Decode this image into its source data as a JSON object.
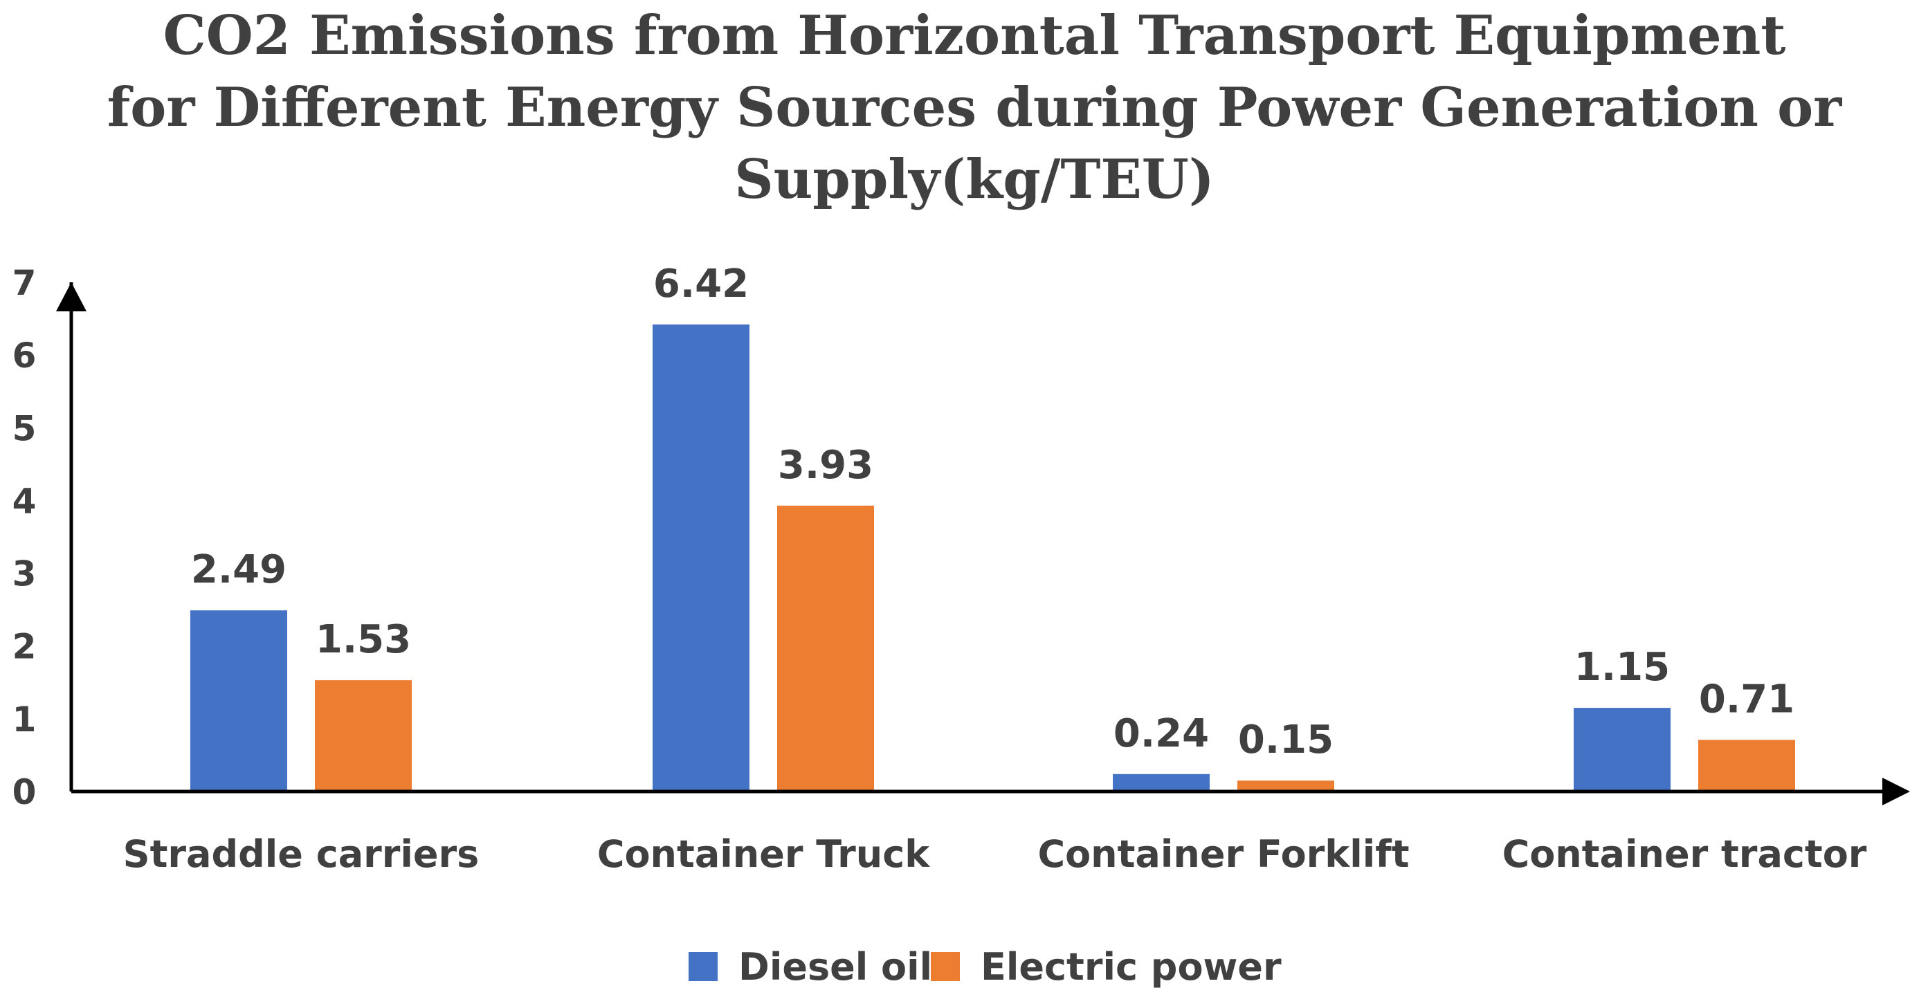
{
  "chart_data": {
    "type": "bar",
    "title": "CO2 Emissions from Horizontal Transport Equipment for Different Energy Sources during Power Generation or Supply(kg/TEU)",
    "title_lines": [
      "CO2 Emissions from Horizontal Transport Equipment",
      "for Different Energy Sources during Power Generation or",
      "Supply(kg/TEU)"
    ],
    "categories": [
      "Straddle carriers",
      "Container Truck",
      "Container Forklift",
      "Container tractor"
    ],
    "series": [
      {
        "name": "Diesel oil",
        "color": "#4472C4",
        "values": [
          2.49,
          6.42,
          0.24,
          1.15
        ],
        "labels": [
          "2.49",
          "6.42",
          "0.24",
          "1.15"
        ]
      },
      {
        "name": "Electric power",
        "color": "#ED7D31",
        "values": [
          1.53,
          3.93,
          0.15,
          0.71
        ],
        "labels": [
          "1.53",
          "3.93",
          "0.15",
          "0.71"
        ]
      }
    ],
    "xlabel": "",
    "ylabel": "",
    "ylim": [
      0,
      7
    ],
    "y_ticks": [
      "0",
      "1",
      "2",
      "3",
      "4",
      "5",
      "6",
      "7"
    ],
    "grid": false,
    "legend_position": "bottom",
    "axis_color": "#000000",
    "text_color": "#404040"
  }
}
